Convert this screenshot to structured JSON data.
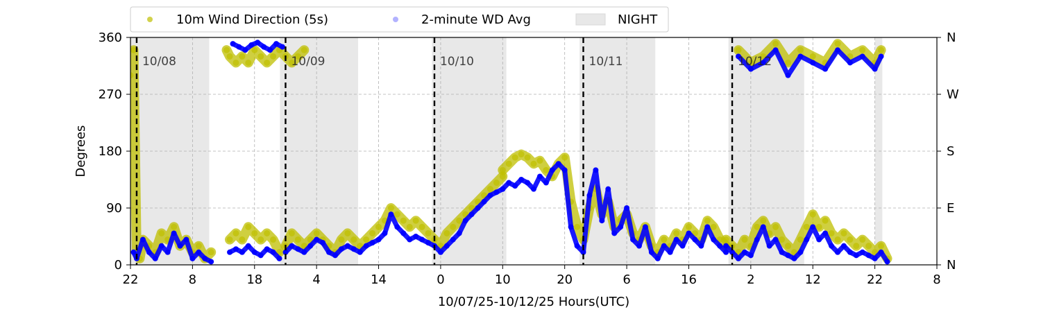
{
  "chart_data": {
    "type": "scatter",
    "title": "",
    "xlabel": "10/07/25-10/12/25  Hours(UTC)",
    "ylabel": "Degrees",
    "xlim_hours": [
      0,
      130
    ],
    "ylim": [
      0,
      360
    ],
    "x_ticks": [
      {
        "hour": 0,
        "label": "22"
      },
      {
        "hour": 10,
        "label": "8"
      },
      {
        "hour": 20,
        "label": "18"
      },
      {
        "hour": 30,
        "label": "4"
      },
      {
        "hour": 40,
        "label": "14"
      },
      {
        "hour": 50,
        "label": "0"
      },
      {
        "hour": 60,
        "label": "10"
      },
      {
        "hour": 70,
        "label": "20"
      },
      {
        "hour": 80,
        "label": "6"
      },
      {
        "hour": 90,
        "label": "16"
      },
      {
        "hour": 100,
        "label": "2"
      },
      {
        "hour": 110,
        "label": "12"
      },
      {
        "hour": 120,
        "label": "22"
      },
      {
        "hour": 130,
        "label": "8"
      }
    ],
    "y_ticks": [
      0,
      90,
      180,
      270,
      360
    ],
    "y2_ticks": [
      {
        "value": 0,
        "label": "N"
      },
      {
        "value": 90,
        "label": "E"
      },
      {
        "value": 180,
        "label": "S"
      },
      {
        "value": 270,
        "label": "W"
      },
      {
        "value": 360,
        "label": "N"
      }
    ],
    "grid": true,
    "legend": {
      "placement": "top-center",
      "entries": [
        {
          "label": "10m Wind Direction (5s)",
          "marker": "dot",
          "color": "#bfbf00"
        },
        {
          "label": "2-minute WD Avg",
          "marker": "dot",
          "color": "#0000ff"
        },
        {
          "label": "NIGHT",
          "marker": "rect",
          "color": "#e8e8e8"
        }
      ]
    },
    "day_markers": [
      {
        "hour": 1,
        "label": "10/08"
      },
      {
        "hour": 25,
        "label": "10/09"
      },
      {
        "hour": 49,
        "label": "10/10"
      },
      {
        "hour": 73,
        "label": "10/11"
      },
      {
        "hour": 97,
        "label": "10/12"
      }
    ],
    "night_periods": [
      [
        0,
        12.7
      ],
      [
        24.1,
        36.7
      ],
      [
        48.6,
        60.6
      ],
      [
        72.4,
        84.6
      ],
      [
        96.4,
        108.6
      ],
      [
        120,
        121.2
      ]
    ],
    "series": [
      {
        "name": "10m Wind Direction (5s)",
        "color": "#bfbf00",
        "segments": [
          {
            "x": [
              0,
              0.5,
              1,
              1.5,
              2,
              3,
              4,
              5,
              6,
              7,
              8,
              9,
              10,
              11,
              12,
              13
            ],
            "y": [
              300,
              340,
              20,
              10,
              40,
              30,
              20,
              50,
              40,
              60,
              30,
              40,
              20,
              30,
              10,
              20
            ]
          },
          {
            "x": [
              16,
              17,
              18,
              19,
              20,
              21,
              22,
              23,
              24
            ],
            "y": [
              40,
              50,
              40,
              60,
              50,
              40,
              50,
              40,
              20
            ]
          },
          {
            "x": [
              15.5,
              16,
              17,
              18,
              19,
              20,
              21,
              22,
              23,
              24,
              25,
              26,
              27,
              28
            ],
            "y": [
              340,
              330,
              320,
              330,
              320,
              340,
              330,
              320,
              330,
              340,
              330,
              320,
              330,
              340
            ]
          },
          {
            "x": [
              25,
              26,
              27,
              28,
              29,
              30,
              31,
              32,
              33,
              34,
              35,
              36,
              37,
              38,
              39,
              40,
              41,
              42,
              43,
              44,
              45,
              46,
              47,
              48,
              49,
              50,
              51,
              52,
              53,
              54,
              55,
              56,
              57,
              58,
              59,
              60
            ],
            "y": [
              30,
              50,
              40,
              30,
              40,
              50,
              40,
              30,
              20,
              40,
              50,
              40,
              30,
              40,
              50,
              60,
              70,
              90,
              80,
              70,
              60,
              70,
              60,
              50,
              40,
              30,
              50,
              60,
              70,
              80,
              90,
              100,
              110,
              120,
              130,
              140
            ]
          },
          {
            "x": [
              60,
              61,
              62,
              63,
              64,
              65,
              66,
              67,
              68,
              69,
              70,
              71,
              72,
              73,
              74,
              75,
              76,
              77,
              78,
              79,
              80,
              81,
              82,
              83,
              84,
              85,
              86,
              87,
              88,
              89,
              90,
              91,
              92,
              93,
              94,
              95,
              96
            ],
            "y": [
              150,
              160,
              170,
              175,
              170,
              160,
              165,
              150,
              140,
              160,
              170,
              100,
              60,
              40,
              90,
              120,
              80,
              100,
              60,
              70,
              80,
              50,
              40,
              60,
              30,
              20,
              40,
              30,
              50,
              40,
              60,
              50,
              40,
              70,
              60,
              40,
              30
            ]
          },
          {
            "x": [
              96,
              97,
              98,
              99,
              100,
              101,
              102,
              103,
              104,
              105,
              106,
              107,
              108,
              109,
              110,
              111,
              112,
              113,
              114,
              115,
              116,
              117,
              118,
              119,
              120,
              121,
              122
            ],
            "y": [
              40,
              30,
              20,
              40,
              30,
              60,
              70,
              50,
              60,
              40,
              30,
              20,
              40,
              60,
              80,
              60,
              70,
              50,
              40,
              50,
              40,
              30,
              40,
              30,
              20,
              30,
              10
            ]
          },
          {
            "x": [
              98,
              100,
              102,
              104,
              106,
              108,
              110,
              112,
              114,
              116,
              118,
              120,
              121
            ],
            "y": [
              340,
              320,
              330,
              350,
              320,
              340,
              330,
              320,
              350,
              330,
              340,
              320,
              340
            ]
          }
        ]
      },
      {
        "name": "2-minute WD Avg",
        "color": "#0000ff",
        "segments": [
          {
            "x": [
              0.5,
              1,
              2,
              3,
              4,
              5,
              6,
              7,
              8,
              9,
              10,
              11,
              12,
              13
            ],
            "y": [
              20,
              10,
              40,
              20,
              10,
              30,
              20,
              50,
              30,
              40,
              10,
              20,
              10,
              5
            ]
          },
          {
            "x": [
              16,
              17,
              18,
              19,
              20,
              21,
              22,
              23,
              24
            ],
            "y": [
              20,
              25,
              20,
              30,
              20,
              15,
              25,
              20,
              10
            ]
          },
          {
            "x": [
              16.5,
              17.5,
              18.5,
              19.5,
              20.5,
              21.5,
              22.5,
              23.5,
              24.5
            ],
            "y": [
              350,
              345,
              340,
              348,
              352,
              345,
              340,
              350,
              345
            ]
          },
          {
            "x": [
              25,
              26,
              27,
              28,
              29,
              30,
              31,
              32,
              33,
              34,
              35,
              36,
              37,
              38,
              39,
              40,
              41,
              42,
              43,
              44,
              45,
              46,
              47,
              48,
              49,
              50,
              51,
              52,
              53,
              54,
              55,
              56,
              57,
              58,
              59,
              60
            ],
            "y": [
              20,
              30,
              25,
              20,
              30,
              40,
              35,
              20,
              15,
              25,
              30,
              25,
              20,
              30,
              35,
              40,
              50,
              80,
              60,
              50,
              40,
              45,
              40,
              35,
              30,
              20,
              30,
              40,
              50,
              70,
              80,
              90,
              100,
              110,
              115,
              120
            ]
          },
          {
            "x": [
              60,
              61,
              62,
              63,
              64,
              65,
              66,
              67,
              68,
              69,
              70,
              71,
              72,
              73,
              74,
              75,
              76,
              77,
              78,
              79,
              80,
              81,
              82,
              83,
              84,
              85,
              86,
              87,
              88,
              89,
              90,
              91,
              92,
              93,
              94,
              95,
              96
            ],
            "y": [
              120,
              130,
              125,
              135,
              130,
              120,
              140,
              130,
              150,
              160,
              150,
              60,
              30,
              20,
              110,
              150,
              70,
              120,
              50,
              60,
              90,
              40,
              30,
              60,
              20,
              10,
              30,
              20,
              40,
              30,
              50,
              40,
              30,
              60,
              40,
              30,
              20
            ]
          },
          {
            "x": [
              96,
              97,
              98,
              99,
              100,
              101,
              102,
              103,
              104,
              105,
              106,
              107,
              108,
              109,
              110,
              111,
              112,
              113,
              114,
              115,
              116,
              117,
              118,
              119,
              120,
              121,
              122
            ],
            "y": [
              30,
              20,
              10,
              20,
              15,
              40,
              60,
              30,
              40,
              20,
              15,
              10,
              20,
              40,
              60,
              40,
              50,
              30,
              20,
              30,
              20,
              15,
              20,
              15,
              10,
              20,
              5
            ]
          },
          {
            "x": [
              98,
              100,
              102,
              104,
              106,
              108,
              110,
              112,
              114,
              116,
              118,
              120,
              121
            ],
            "y": [
              330,
              310,
              320,
              340,
              300,
              330,
              320,
              310,
              340,
              320,
              330,
              310,
              330
            ]
          }
        ]
      }
    ]
  }
}
